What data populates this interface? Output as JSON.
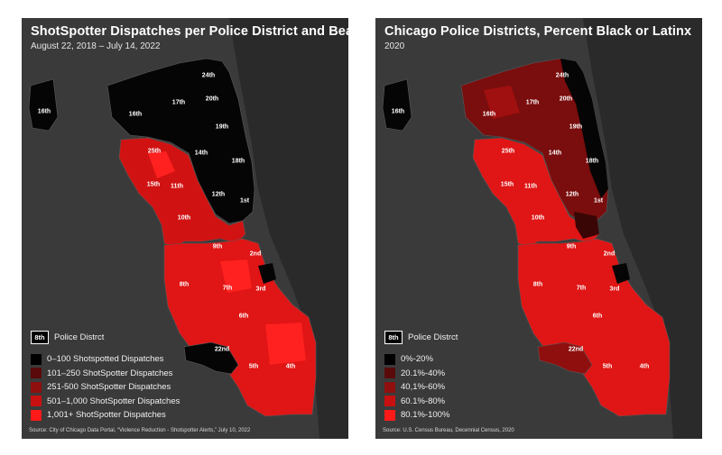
{
  "left_map": {
    "title": "ShotSpotter Dispatches per Police District and Beat",
    "subtitle": "August 22, 2018 – July 14, 2022",
    "legend": {
      "district_box": "8th",
      "district_label": "Police Distrct",
      "items": [
        {
          "label": "0–100 Shotspotted Dispatches",
          "color": "#000000"
        },
        {
          "label": "101–250 ShotSpotter Dispatches",
          "color": "#5a0a0a"
        },
        {
          "label": "251-500 ShotSpotter Dispatches",
          "color": "#8f0f0f"
        },
        {
          "label": "501–1,000 ShotSpotter Dispatches",
          "color": "#c81010"
        },
        {
          "label": "1,001+ ShotSpotter Dispatches",
          "color": "#ff1a1a"
        }
      ]
    },
    "source": "Source: City of Chicago Data Portal, “Violence Reduction - Shotspotter Alerts,” July 10, 2022",
    "districts": {
      "16th_ohare": "16th",
      "16th": "16th",
      "17th": "17th",
      "24th": "24th",
      "20th": "20th",
      "19th": "19th",
      "14th": "14th",
      "18th": "18th",
      "25th": "25th",
      "15th": "15th",
      "11th": "11th",
      "12th": "12th",
      "1st": "1st",
      "10th": "10th",
      "9th": "9th",
      "2nd": "2nd",
      "8th": "8th",
      "7th": "7th",
      "3rd": "3rd",
      "6th": "6th",
      "22nd": "22nd",
      "5th": "5th",
      "4th": "4th"
    }
  },
  "right_map": {
    "title": "Chicago Police Districts, Percent Black or Latinx",
    "subtitle": "2020",
    "legend": {
      "district_box": "8th",
      "district_label": "Police Distrct",
      "items": [
        {
          "label": "0%-20%",
          "color": "#000000"
        },
        {
          "label": "20.1%-40%",
          "color": "#5a0a0a"
        },
        {
          "label": "40,1%-60%",
          "color": "#8f0f0f"
        },
        {
          "label": "60.1%-80%",
          "color": "#c81010"
        },
        {
          "label": "80.1%-100%",
          "color": "#ff1a1a"
        }
      ]
    },
    "source": "Source: U.S. Census Bureau, Decennial Census, 2020",
    "districts": {
      "16th_ohare": "16th",
      "16th": "16th",
      "17th": "17th",
      "24th": "24th",
      "20th": "20th",
      "19th": "19th",
      "14th": "14th",
      "18th": "18th",
      "25th": "25th",
      "15th": "15th",
      "11th": "11th",
      "12th": "12th",
      "1st": "1st",
      "10th": "10th",
      "9th": "9th",
      "2nd": "2nd",
      "8th": "8th",
      "7th": "7th",
      "3rd": "3rd",
      "6th": "6th",
      "22nd": "22nd",
      "5th": "5th",
      "4th": "4th"
    }
  }
}
